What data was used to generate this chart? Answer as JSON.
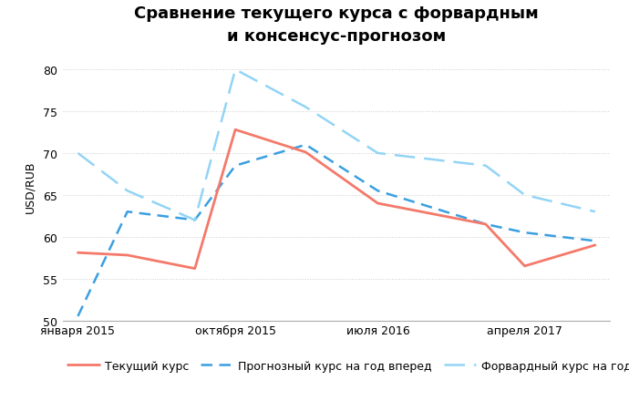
{
  "title": "Сравнение текущего курса с форвардным\nи консенсус-прогнозом",
  "ylabel": "USD/RUB",
  "xtick_labels": [
    "января 2015",
    "октября 2015",
    "июля 2016",
    "апреля 2017"
  ],
  "ylim": [
    50,
    82
  ],
  "yticks": [
    50,
    55,
    60,
    65,
    70,
    75,
    80
  ],
  "xlim": [
    -0.1,
    3.55
  ],
  "current_rate": {
    "x": [
      0,
      0.33,
      0.78,
      1.05,
      1.52,
      2.0,
      2.72,
      2.98,
      3.45
    ],
    "y": [
      58.1,
      57.8,
      56.2,
      72.8,
      70.1,
      64.0,
      61.5,
      56.5,
      59.0
    ],
    "color": "#f4796a",
    "linewidth": 2.0,
    "label": "Текущий курс"
  },
  "forecast_rate": {
    "x": [
      0,
      0.33,
      0.78,
      1.05,
      1.52,
      2.0,
      2.72,
      2.98,
      3.45
    ],
    "y": [
      50.5,
      63.0,
      62.0,
      68.5,
      71.0,
      65.5,
      61.5,
      60.5,
      59.5
    ],
    "color": "#3a9fe0",
    "linewidth": 1.8,
    "label": "Прогнозный курс на год вперед",
    "dashes": [
      5,
      3
    ]
  },
  "forward_rate": {
    "x": [
      0,
      0.33,
      0.78,
      1.05,
      1.52,
      2.0,
      2.72,
      2.98,
      3.45
    ],
    "y": [
      70.0,
      65.5,
      62.0,
      80.0,
      75.5,
      70.0,
      68.5,
      65.0,
      63.0
    ],
    "color": "#93d4f5",
    "linewidth": 1.8,
    "label": "Форвардный курс на год вперед",
    "dashes": [
      9,
      4
    ]
  },
  "background_color": "#ffffff",
  "grid_color": "#cccccc",
  "title_fontsize": 13,
  "axis_label_fontsize": 9,
  "tick_fontsize": 9,
  "legend_fontsize": 9
}
